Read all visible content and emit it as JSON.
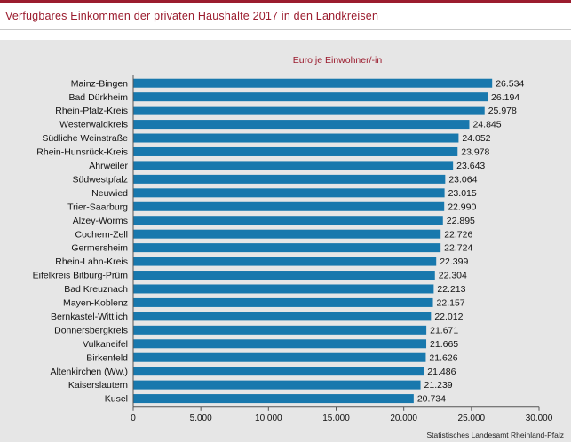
{
  "header": {
    "title": "Verfügbares Einkommen der privaten Haushalte 2017 in den Landkreisen"
  },
  "chart_data": {
    "type": "bar",
    "orientation": "horizontal",
    "title": "Verfügbares Einkommen der privaten Haushalte 2017 in den Landkreisen",
    "unit": "Euro je Einwohner/-in",
    "categories": [
      "Mainz-Bingen",
      "Bad Dürkheim",
      "Rhein-Pfalz-Kreis",
      "Westerwaldkreis",
      "Südliche Weinstraße",
      "Rhein-Hunsrück-Kreis",
      "Ahrweiler",
      "Südwestpfalz",
      "Neuwied",
      "Trier-Saarburg",
      "Alzey-Worms",
      "Cochem-Zell",
      "Germersheim",
      "Rhein-Lahn-Kreis",
      "Eifelkreis Bitburg-Prüm",
      "Bad Kreuznach",
      "Mayen-Koblenz",
      "Bernkastel-Wittlich",
      "Donnersbergkreis",
      "Vulkaneifel",
      "Birkenfeld",
      "Altenkirchen (Ww.)",
      "Kaiserslautern",
      "Kusel"
    ],
    "values": [
      26534,
      26194,
      25978,
      24845,
      24052,
      23978,
      23643,
      23064,
      23015,
      22990,
      22895,
      22726,
      22724,
      22399,
      22304,
      22213,
      22157,
      22012,
      21671,
      21665,
      21626,
      21486,
      21239,
      20734
    ],
    "value_labels": [
      "26.534",
      "26.194",
      "25.978",
      "24.845",
      "24.052",
      "23.978",
      "23.643",
      "23.064",
      "23.015",
      "22.990",
      "22.895",
      "22.726",
      "22.724",
      "22.399",
      "22.304",
      "22.213",
      "22.157",
      "22.012",
      "21.671",
      "21.665",
      "21.626",
      "21.486",
      "21.239",
      "20.734"
    ],
    "xlim": [
      0,
      30000
    ],
    "x_ticks": [
      0,
      5000,
      10000,
      15000,
      20000,
      25000,
      30000
    ],
    "x_tick_labels": [
      "0",
      "5.000",
      "10.000",
      "15.000",
      "20.000",
      "25.000",
      "30.000"
    ],
    "grid": false,
    "bar_color": "#1878ad"
  },
  "footer": {
    "source": "Statistisches Landesamt Rheinland-Pfalz"
  }
}
